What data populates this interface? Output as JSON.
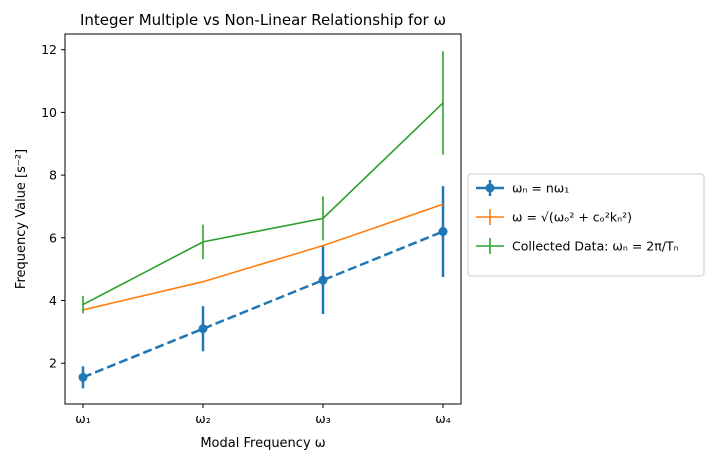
{
  "chart_data": {
    "type": "line",
    "title": "Integer Multiple vs Non-Linear Relationship for ω",
    "xlabel": "Modal Frequency ω",
    "ylabel": "Frequency Value  [s⁻²]",
    "categories": [
      "ω₁",
      "ω₂",
      "ω₃",
      "ω₄"
    ],
    "ylim": [
      0.7,
      12.5
    ],
    "yticks": [
      2,
      4,
      6,
      8,
      10,
      12
    ],
    "grid": false,
    "legend_position": "outside-right",
    "series": [
      {
        "name": "ωₙ = nω₁",
        "color": "#1f77b4",
        "style": "dashed",
        "marker": "circle",
        "values": [
          1.55,
          3.1,
          4.65,
          6.2
        ],
        "error": [
          0.35,
          0.72,
          1.08,
          1.45
        ]
      },
      {
        "name": "ω = √(ωₒ² + cₒ²kₙ²)",
        "color": "#ff7f0e",
        "style": "solid",
        "marker": "none",
        "values": [
          3.7,
          4.6,
          5.75,
          7.07
        ],
        "error": null
      },
      {
        "name": "Collected Data: ωₙ = 2π/Tₙ",
        "color": "#2ca02c",
        "style": "solid",
        "marker": "none",
        "values": [
          3.87,
          5.87,
          6.62,
          10.3
        ],
        "error": [
          0.28,
          0.55,
          0.7,
          1.65
        ]
      }
    ]
  }
}
